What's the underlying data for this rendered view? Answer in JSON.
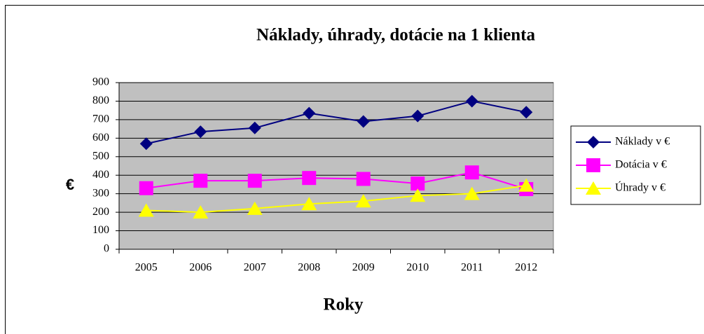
{
  "chart_data": {
    "type": "line",
    "title": "Náklady, úhrady, dotácie na 1 klienta",
    "x_label": "Roky",
    "y_label": "€",
    "categories": [
      "2005",
      "2006",
      "2007",
      "2008",
      "2009",
      "2010",
      "2011",
      "2012"
    ],
    "series": [
      {
        "name": "Náklady v €",
        "color": "#000080",
        "marker": "diamond",
        "values": [
          570,
          635,
          655,
          735,
          690,
          720,
          800,
          740
        ]
      },
      {
        "name": "Dotácia v €",
        "color": "#ff00ff",
        "marker": "square",
        "values": [
          330,
          370,
          370,
          385,
          380,
          355,
          415,
          325
        ]
      },
      {
        "name": "Úhrady v €",
        "color": "#ffff00",
        "marker": "triangle",
        "values": [
          210,
          200,
          220,
          245,
          260,
          290,
          300,
          345
        ]
      }
    ],
    "ylim": [
      0,
      900
    ],
    "yticks": [
      0,
      100,
      200,
      300,
      400,
      500,
      600,
      700,
      800,
      900
    ],
    "grid": true,
    "plot_background": "#c0c0c0",
    "legend": "right"
  }
}
